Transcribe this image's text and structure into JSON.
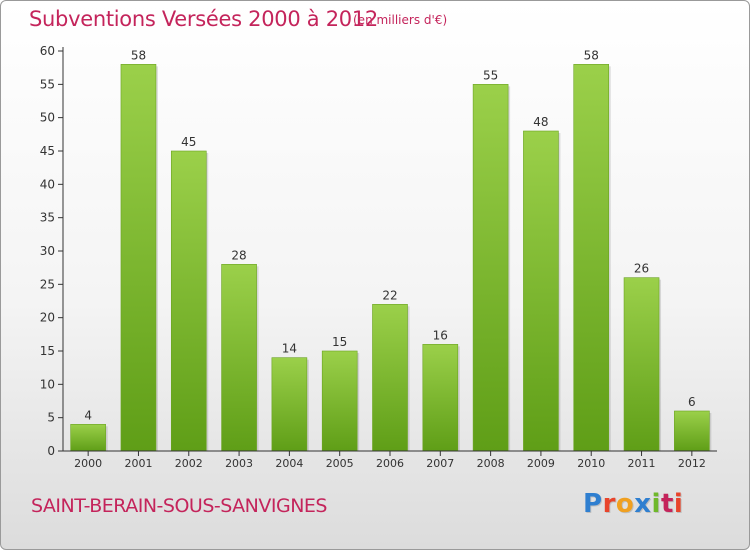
{
  "header": {
    "title": "Subventions Versées 2000 à 2012",
    "unit": "(en milliers d'€)"
  },
  "footer": {
    "commune": "SAINT-BERAIN-SOUS-SANVIGNES",
    "brand": "Proxiti",
    "brand_colors": [
      "#2f7fd0",
      "#e8442b",
      "#f0a020",
      "#2f7fd0",
      "#6fb82a",
      "#c4245b",
      "#e8442b"
    ]
  },
  "colors": {
    "bar_top": "#9bd04a",
    "bar_bottom": "#5f9e17",
    "axis": "#333333",
    "grid": "#d0d0d0",
    "title": "#c4245b"
  },
  "chart_data": {
    "type": "bar",
    "categories": [
      "2000",
      "2001",
      "2002",
      "2003",
      "2004",
      "2005",
      "2006",
      "2007",
      "2008",
      "2009",
      "2010",
      "2011",
      "2012"
    ],
    "values": [
      4,
      58,
      45,
      28,
      14,
      15,
      22,
      16,
      55,
      48,
      58,
      26,
      6
    ],
    "ylim": [
      0,
      60
    ],
    "yticks": [
      0,
      5,
      10,
      15,
      20,
      25,
      30,
      35,
      40,
      45,
      50,
      55,
      60
    ],
    "grid": false,
    "data_labels": true
  }
}
